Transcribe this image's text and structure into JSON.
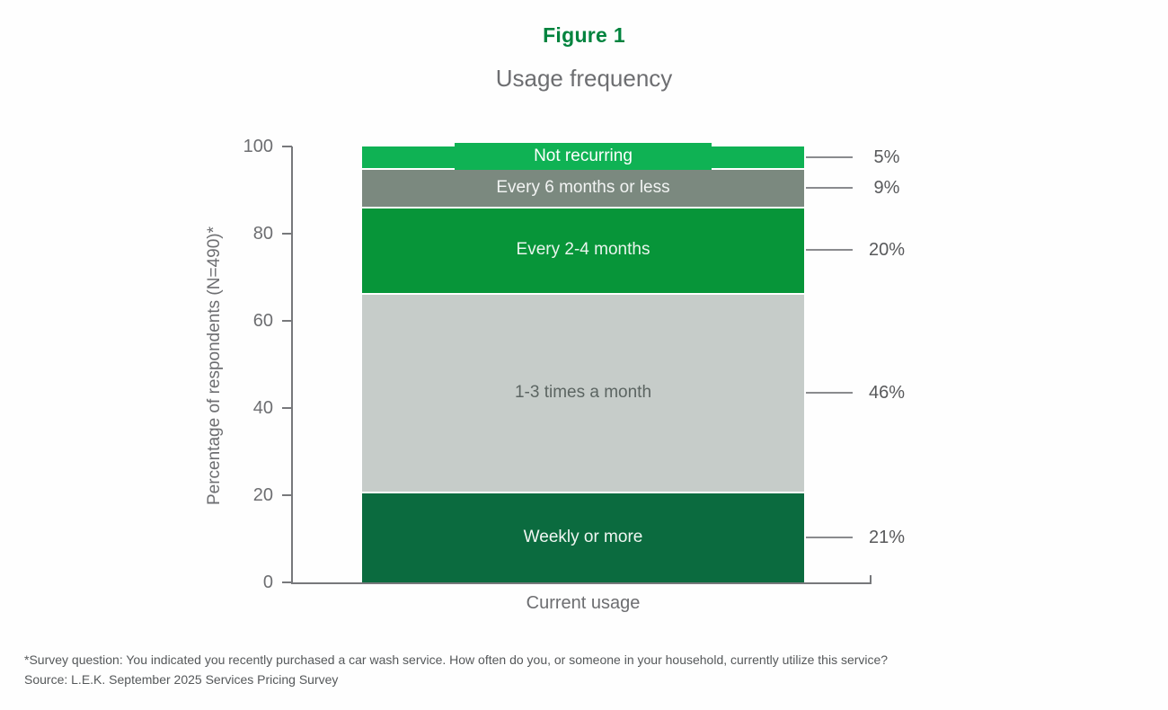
{
  "chart_data": {
    "type": "bar",
    "stacked": true,
    "title": "Figure 1",
    "subtitle": "Usage frequency",
    "xlabel": "Current usage",
    "ylabel": "Percentage of respondents (N=490)*",
    "ylim": [
      0,
      100
    ],
    "yticks": [
      0,
      20,
      40,
      60,
      80,
      100
    ],
    "grid": false,
    "legend_position": "none",
    "categories": [
      "Current usage"
    ],
    "series": [
      {
        "name": "Weekly or more",
        "value": 21,
        "pct_label": "21%",
        "color": "#0b6b3f",
        "text_color": "#f0f6f2",
        "label_box": false
      },
      {
        "name": "1-3 times a month",
        "value": 46,
        "pct_label": "46%",
        "color": "#c6ccc9",
        "text_color": "#5c6562",
        "label_box": false
      },
      {
        "name": "Every 2-4 months",
        "value": 20,
        "pct_label": "20%",
        "color": "#079539",
        "text_color": "#eaf5ee",
        "label_box": false
      },
      {
        "name": "Every 6 months or less",
        "value": 9,
        "pct_label": "9%",
        "color": "#7b897f",
        "text_color": "#f2f4f3",
        "label_box": false
      },
      {
        "name": "Not recurring",
        "value": 5,
        "pct_label": "5%",
        "color": "#0fb254",
        "text_color": "#ffffff",
        "label_box": true
      }
    ]
  },
  "footnotes": {
    "survey_question": "*Survey question: You indicated you recently purchased a car wash service. How often do you, or someone in your household, currently utilize this service?",
    "source": "Source: L.E.K. September 2025 Services Pricing Survey"
  },
  "colors": {
    "figure_title_green": "#00833e",
    "axis_gray": "#77787b",
    "text_gray": "#6d6e71",
    "value_label_gray": "#58595b"
  }
}
